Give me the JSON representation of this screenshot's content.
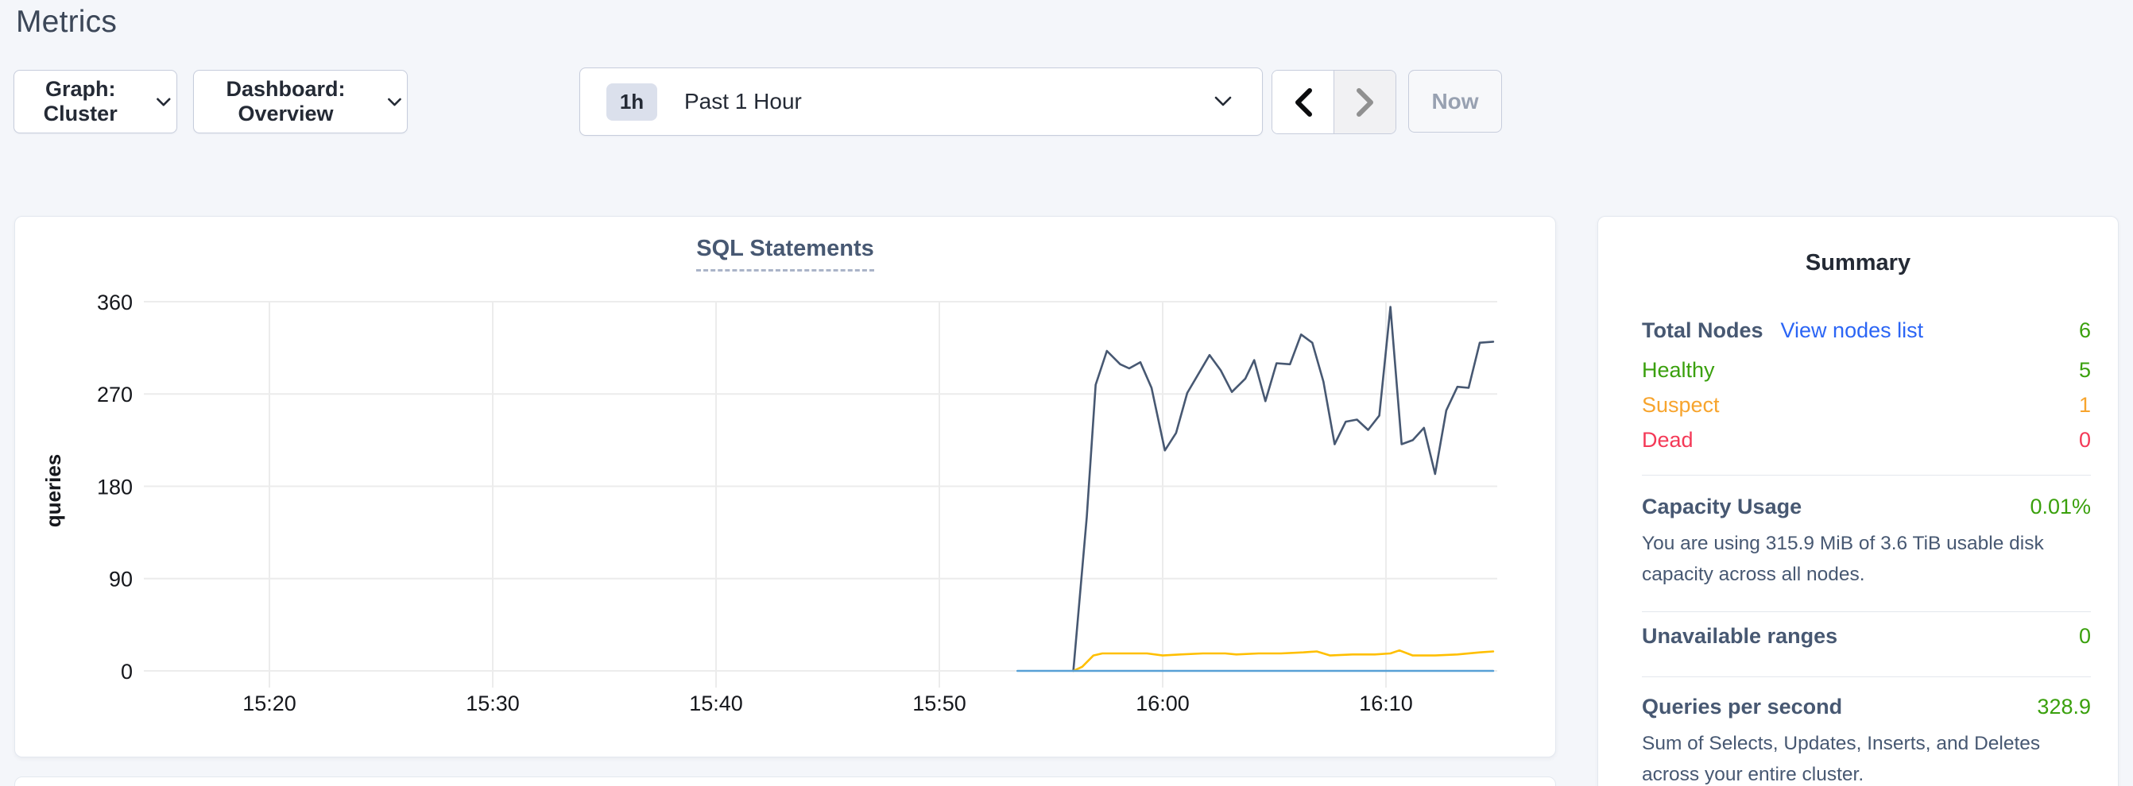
{
  "page": {
    "title": "Metrics"
  },
  "toolbar": {
    "graph_dropdown": {
      "label": "Graph: Cluster"
    },
    "dashboard_dropdown": {
      "label": "Dashboard: Overview"
    },
    "time_selector": {
      "badge": "1h",
      "label": "Past 1 Hour"
    },
    "prev_icon": "chevron-left",
    "next_icon": "chevron-right",
    "now_button": "Now"
  },
  "colors": {
    "heading_dark": "#242a35",
    "slate_label": "#475872",
    "link_blue": "#2b65f5",
    "status_green": "#3aa00d",
    "status_orange": "#f7a42d",
    "status_red": "#f43957",
    "gridline": "#ececec",
    "axis_text": "#15171c"
  },
  "chart_data": {
    "type": "line",
    "title": "SQL Statements",
    "xlabel": "",
    "ylabel": "queries",
    "grid": true,
    "legend_position": "none-visible",
    "x_axis": {
      "tick_labels": [
        "15:20",
        "15:30",
        "15:40",
        "15:50",
        "16:00",
        "16:10"
      ],
      "tick_minutes": [
        20,
        30,
        40,
        50,
        60,
        70
      ],
      "x_unit": "minutes after 15:00",
      "range_minutes": [
        14.4,
        75.0
      ],
      "range_labels": [
        "15:14",
        "16:15"
      ]
    },
    "y_axis": {
      "tick_labels": [
        "0",
        "90",
        "180",
        "270",
        "360"
      ],
      "ticks": [
        0,
        90,
        180,
        270,
        360
      ],
      "ylim": [
        0,
        360
      ]
    },
    "series": [
      {
        "name": "navy",
        "color": "#475872",
        "points": [
          [
            56.0,
            0
          ],
          [
            56.6,
            150
          ],
          [
            57.0,
            279
          ],
          [
            57.5,
            312
          ],
          [
            58.1,
            299
          ],
          [
            58.5,
            295
          ],
          [
            59.0,
            301
          ],
          [
            59.5,
            276
          ],
          [
            60.1,
            215
          ],
          [
            60.6,
            232
          ],
          [
            61.1,
            271
          ],
          [
            62.1,
            308
          ],
          [
            62.6,
            293
          ],
          [
            63.1,
            272
          ],
          [
            63.7,
            285
          ],
          [
            64.1,
            303
          ],
          [
            64.6,
            263
          ],
          [
            65.1,
            300
          ],
          [
            65.7,
            299
          ],
          [
            66.2,
            328
          ],
          [
            66.7,
            320
          ],
          [
            67.2,
            282
          ],
          [
            67.7,
            221
          ],
          [
            68.2,
            243
          ],
          [
            68.7,
            245
          ],
          [
            69.2,
            235
          ],
          [
            69.7,
            249
          ],
          [
            70.2,
            355
          ],
          [
            70.7,
            221
          ],
          [
            71.2,
            225
          ],
          [
            71.7,
            237
          ],
          [
            72.2,
            192
          ],
          [
            72.7,
            254
          ],
          [
            73.2,
            277
          ],
          [
            73.7,
            276
          ],
          [
            74.2,
            320
          ],
          [
            74.8,
            321
          ]
        ]
      },
      {
        "name": "yellow",
        "color": "#ffbf00",
        "points": [
          [
            56.0,
            0
          ],
          [
            56.4,
            4
          ],
          [
            56.9,
            15
          ],
          [
            57.3,
            17
          ],
          [
            58.3,
            17
          ],
          [
            59.3,
            17
          ],
          [
            60.0,
            15
          ],
          [
            60.8,
            16
          ],
          [
            61.8,
            17
          ],
          [
            62.8,
            17
          ],
          [
            63.3,
            16
          ],
          [
            64.3,
            17
          ],
          [
            65.3,
            17
          ],
          [
            66.3,
            18
          ],
          [
            66.9,
            19
          ],
          [
            67.5,
            15
          ],
          [
            68.5,
            16
          ],
          [
            69.5,
            16
          ],
          [
            70.2,
            17
          ],
          [
            70.6,
            20
          ],
          [
            71.2,
            15
          ],
          [
            72.2,
            15
          ],
          [
            73.2,
            16
          ],
          [
            74.2,
            18
          ],
          [
            74.8,
            19
          ]
        ]
      },
      {
        "name": "blue",
        "color": "#57a0d6",
        "points": [
          [
            53.5,
            0
          ],
          [
            74.8,
            0
          ]
        ]
      }
    ]
  },
  "summary": {
    "title": "Summary",
    "total_nodes": {
      "label": "Total Nodes",
      "link": "View nodes list",
      "value": "6"
    },
    "healthy": {
      "label": "Healthy",
      "value": "5"
    },
    "suspect": {
      "label": "Suspect",
      "value": "1"
    },
    "dead": {
      "label": "Dead",
      "value": "0"
    },
    "capacity": {
      "label": "Capacity Usage",
      "value": "0.01%",
      "desc": "You are using 315.9 MiB of 3.6 TiB usable disk capacity across all nodes."
    },
    "unavailable": {
      "label": "Unavailable ranges",
      "value": "0"
    },
    "qps": {
      "label": "Queries per second",
      "value": "328.9",
      "desc": "Sum of Selects, Updates, Inserts, and Deletes across your entire cluster."
    }
  }
}
